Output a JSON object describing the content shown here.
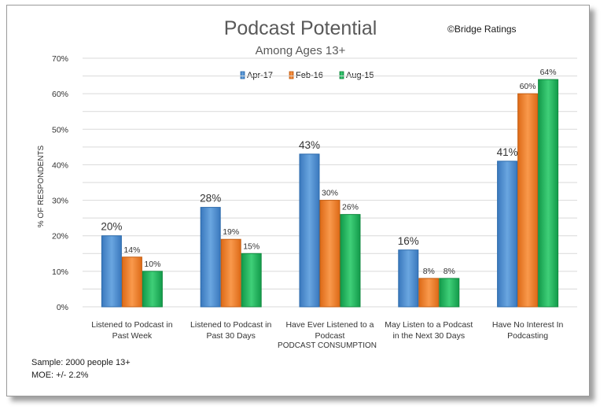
{
  "colors": {
    "series": [
      "#4f8fd0",
      "#f07d2a",
      "#1fb15a"
    ],
    "series_edge": [
      "#2b6aab",
      "#c45e12",
      "#128a40"
    ],
    "grid": "#d9d9d9"
  },
  "credit": "©Bridge Ratings",
  "notes": [
    "Sample: 2000 people 13+",
    "MOE: +/- 2.2%"
  ],
  "chart_data": {
    "type": "bar",
    "title": "Podcast Potential",
    "subtitle": "Among Ages 13+",
    "xlabel": "PODCAST CONSUMPTION",
    "ylabel": "% OF RESPONDENTS",
    "ylim": [
      0,
      70
    ],
    "ytick_step": 10,
    "yticks": [
      "0%",
      "10%",
      "20%",
      "30%",
      "40%",
      "50%",
      "60%",
      "70%"
    ],
    "grid": true,
    "legend_position": "top-center",
    "categories": [
      [
        "Listened to Podcast in",
        "Past Week"
      ],
      [
        "Listened to Podcast in",
        "Past 30 Days"
      ],
      [
        "Have Ever Listened to a",
        "Podcast"
      ],
      [
        "May Listen to a Podcast",
        "in the Next 30 Days"
      ],
      [
        "Have No Interest In",
        "Podcasting"
      ]
    ],
    "series": [
      {
        "name": "Apr-17",
        "values": [
          20,
          28,
          43,
          16,
          41
        ],
        "labels": [
          "20%",
          "28%",
          "43%",
          "16%",
          "41%"
        ]
      },
      {
        "name": "Feb-16",
        "values": [
          14,
          19,
          30,
          8,
          60
        ],
        "labels": [
          "14%",
          "19%",
          "30%",
          "8%",
          "60%"
        ]
      },
      {
        "name": "Aug-15",
        "values": [
          10,
          15,
          26,
          8,
          64
        ],
        "labels": [
          "10%",
          "15%",
          "26%",
          "8%",
          "64%"
        ]
      }
    ]
  }
}
